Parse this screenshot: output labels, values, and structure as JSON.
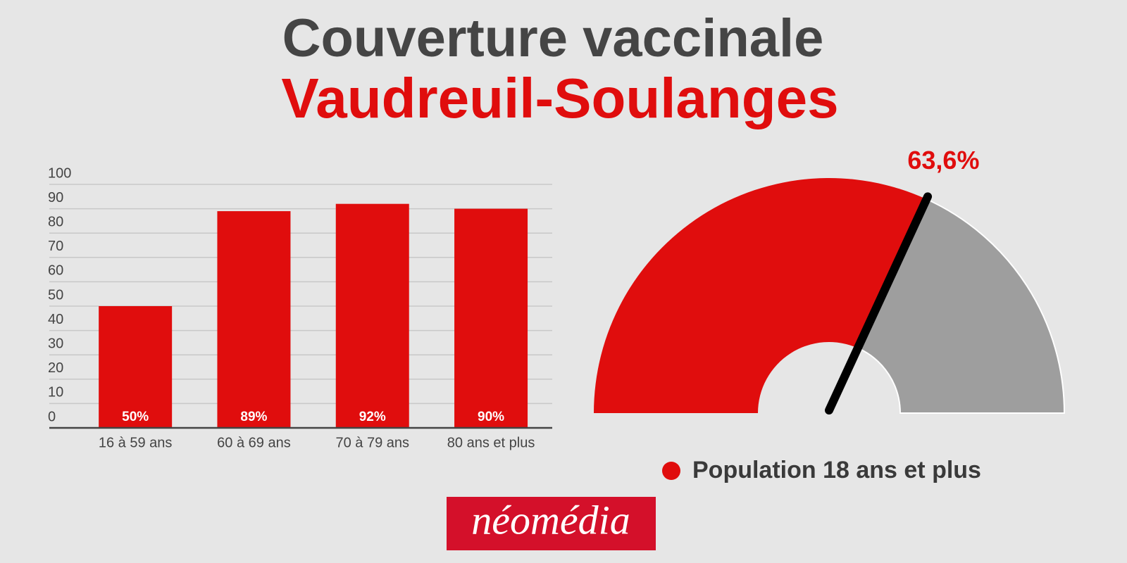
{
  "title": "Couverture vaccinale",
  "subtitle": "Vaudreuil-Soulanges",
  "logo": "néomédia",
  "chart_data": [
    {
      "type": "bar",
      "categories": [
        "16 à 59 ans",
        "60 à 69 ans",
        "70 à 79 ans",
        "80 ans et plus"
      ],
      "values": [
        50,
        89,
        92,
        90
      ],
      "value_labels": [
        "50%",
        "89%",
        "92%",
        "90%"
      ],
      "color": "#e00d0d",
      "ylim": [
        0,
        100
      ],
      "yticks": [
        0,
        10,
        20,
        30,
        40,
        50,
        60,
        70,
        80,
        90,
        100
      ],
      "grid": true
    },
    {
      "type": "gauge",
      "value": 63.6,
      "value_label": "63,6%",
      "ylim": [
        0,
        100
      ],
      "series": [
        {
          "name": "Population 18 ans et plus",
          "color": "#e00d0d"
        }
      ],
      "rest_color": "#9e9e9e",
      "needle_color": "#000000"
    }
  ]
}
